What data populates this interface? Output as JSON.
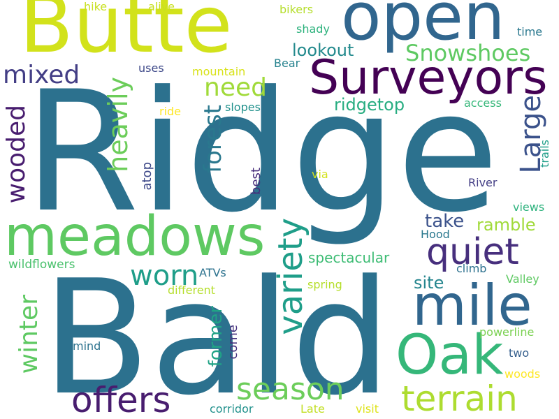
{
  "words": {
    "ridge": {
      "text": "Ridge",
      "color": "#2c718e"
    },
    "bald": {
      "text": "Bald",
      "color": "#2c718e"
    },
    "butte": {
      "text": "Butte",
      "color": "#d2e21b"
    },
    "open": {
      "text": "open",
      "color": "#31668e"
    },
    "surveyors": {
      "text": "Surveyors",
      "color": "#440154"
    },
    "meadows": {
      "text": "meadows",
      "color": "#5ec962"
    },
    "mile": {
      "text": "mile",
      "color": "#31668e"
    },
    "oak": {
      "text": "Oak",
      "color": "#35b779"
    },
    "quiet": {
      "text": "quiet",
      "color": "#472f7d"
    },
    "offers": {
      "text": "offers",
      "color": "#481d6f"
    },
    "terrain": {
      "text": "terrain",
      "color": "#addc30"
    },
    "season": {
      "text": "season",
      "color": "#6ccd5a"
    },
    "variety": {
      "text": "variety",
      "color": "#1f9e89"
    },
    "worn": {
      "text": "worn",
      "color": "#1f9e89"
    },
    "forest": {
      "text": "forest",
      "color": "#2a788e"
    },
    "need": {
      "text": "need",
      "color": "#a0da39"
    },
    "heavily": {
      "text": "heavily",
      "color": "#6ccd5a"
    },
    "wooded": {
      "text": "wooded",
      "color": "#481d6f"
    },
    "mixed": {
      "text": "mixed",
      "color": "#433e85"
    },
    "winter": {
      "text": "winter",
      "color": "#5ec962"
    },
    "large": {
      "text": "Large",
      "color": "#3b528b"
    },
    "snowshoes": {
      "text": "Snowshoes",
      "color": "#5ec962"
    },
    "lookout": {
      "text": "lookout",
      "color": "#238a8d"
    },
    "ridgetop": {
      "text": "ridgetop",
      "color": "#27ad81"
    },
    "former": {
      "text": "former",
      "color": "#20a386"
    },
    "take": {
      "text": "take",
      "color": "#3b528b"
    },
    "ramble": {
      "text": "ramble",
      "color": "#a0da39"
    },
    "site": {
      "text": "site",
      "color": "#25858e"
    },
    "spectacular": {
      "text": "spectacular",
      "color": "#3dbc74"
    },
    "wildflowers": {
      "text": "wildflowers",
      "color": "#4ac16d"
    },
    "hike": {
      "text": "hike",
      "color": "#c8e020"
    },
    "alive": {
      "text": "alive",
      "color": "#c8e020"
    },
    "bikers": {
      "text": "bikers",
      "color": "#b5de2b"
    },
    "shady": {
      "text": "shady",
      "color": "#2db27d"
    },
    "time": {
      "text": "time",
      "color": "#2a788e"
    },
    "uses": {
      "text": "uses",
      "color": "#3e4989"
    },
    "mountain": {
      "text": "mountain",
      "color": "#d8e219"
    },
    "bear": {
      "text": "Bear",
      "color": "#26828e"
    },
    "ride": {
      "text": "ride",
      "color": "#fde725"
    },
    "slopes": {
      "text": "slopes",
      "color": "#21918c"
    },
    "access": {
      "text": "access",
      "color": "#35b779"
    },
    "trails": {
      "text": "trails",
      "color": "#1f9e89"
    },
    "atop": {
      "text": "atop",
      "color": "#3e4989"
    },
    "best": {
      "text": "best",
      "color": "#472d7b"
    },
    "via": {
      "text": "via",
      "color": "#d2e21b"
    },
    "river": {
      "text": "River",
      "color": "#433e85"
    },
    "views": {
      "text": "views",
      "color": "#2db27d"
    },
    "hood": {
      "text": "Hood",
      "color": "#2a788e"
    },
    "atvs": {
      "text": "ATVs",
      "color": "#2c728e"
    },
    "climb": {
      "text": "climb",
      "color": "#2c718e"
    },
    "valley": {
      "text": "Valley",
      "color": "#5ec962"
    },
    "different": {
      "text": "different",
      "color": "#b5de2b"
    },
    "spring": {
      "text": "spring",
      "color": "#b5de2b"
    },
    "come": {
      "text": "come",
      "color": "#46337e"
    },
    "powerline": {
      "text": "powerline",
      "color": "#7ad151"
    },
    "mind": {
      "text": "mind",
      "color": "#2c728e"
    },
    "two": {
      "text": "two",
      "color": "#355f8d"
    },
    "woods": {
      "text": "woods",
      "color": "#fde725"
    },
    "corridor": {
      "text": "corridor",
      "color": "#21918c"
    },
    "late": {
      "text": "Late",
      "color": "#c2df23"
    },
    "visit": {
      "text": "visit",
      "color": "#dde318"
    }
  }
}
